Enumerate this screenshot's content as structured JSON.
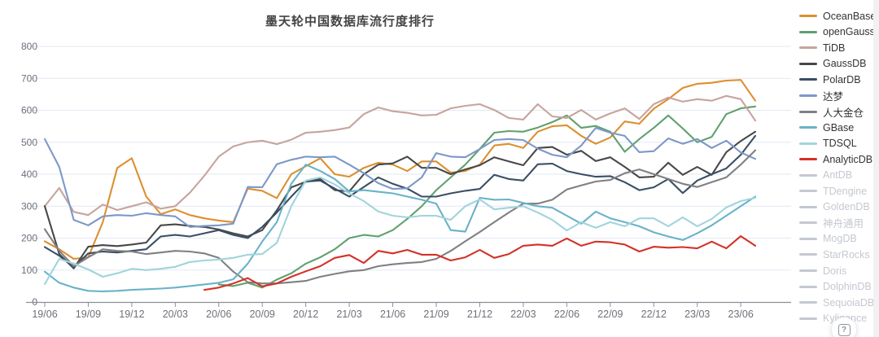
{
  "title": "墨天轮中国数据库流行度排行",
  "help": {
    "icon_glyph": "?"
  },
  "legend": {
    "items": [
      {
        "label": "OceanBase",
        "color": "#dd8f2e",
        "enabled": true
      },
      {
        "label": "openGauss",
        "color": "#61a06e",
        "enabled": true
      },
      {
        "label": "TiDB",
        "color": "#c7a49e",
        "enabled": true
      },
      {
        "label": "GaussDB",
        "color": "#48484a",
        "enabled": true
      },
      {
        "label": "PolarDB",
        "color": "#3a4e66",
        "enabled": true
      },
      {
        "label": "达梦",
        "color": "#7c98c8",
        "enabled": true
      },
      {
        "label": "人大金仓",
        "color": "#808082",
        "enabled": true
      },
      {
        "label": "GBase",
        "color": "#6ab2c8",
        "enabled": true
      },
      {
        "label": "TDSQL",
        "color": "#a0d4dc",
        "enabled": true
      },
      {
        "label": "AnalyticDB",
        "color": "#d33129",
        "enabled": true
      },
      {
        "label": "AntDB",
        "color": "#c4c8cf",
        "enabled": false
      },
      {
        "label": "TDengine",
        "color": "#c4c8cf",
        "enabled": false
      },
      {
        "label": "GoldenDB",
        "color": "#c4c8cf",
        "enabled": false
      },
      {
        "label": "神舟通用",
        "color": "#c4c8cf",
        "enabled": false
      },
      {
        "label": "MogDB",
        "color": "#c4c8cf",
        "enabled": false
      },
      {
        "label": "StarRocks",
        "color": "#c4c8cf",
        "enabled": false
      },
      {
        "label": "Doris",
        "color": "#c4c8cf",
        "enabled": false
      },
      {
        "label": "DolphinDB",
        "color": "#c4c8cf",
        "enabled": false
      },
      {
        "label": "SequoiaDB",
        "color": "#c4c8cf",
        "enabled": false
      },
      {
        "label": "Kyligence",
        "color": "#c4c8cf",
        "enabled": false
      }
    ]
  },
  "chart_data": {
    "type": "line",
    "title": "墨天轮中国数据库流行度排行",
    "xlabel": "",
    "ylabel": "",
    "ylim": [
      0,
      800
    ],
    "y_ticks": [
      0,
      100,
      200,
      300,
      400,
      500,
      600,
      700,
      800
    ],
    "grid": true,
    "legend_position": "right",
    "x": [
      "19/06",
      "19/07",
      "19/08",
      "19/09",
      "19/10",
      "19/11",
      "19/12",
      "20/01",
      "20/02",
      "20/03",
      "20/04",
      "20/05",
      "20/06",
      "20/07",
      "20/08",
      "20/09",
      "20/10",
      "20/11",
      "20/12",
      "21/01",
      "21/02",
      "21/03",
      "21/04",
      "21/05",
      "21/06",
      "21/07",
      "21/08",
      "21/09",
      "21/10",
      "21/11",
      "21/12",
      "22/01",
      "22/02",
      "22/03",
      "22/04",
      "22/05",
      "22/06",
      "22/07",
      "22/08",
      "22/09",
      "22/10",
      "22/11",
      "22/12",
      "23/01",
      "23/02",
      "23/03",
      "23/04",
      "23/05",
      "23/06",
      "23/07"
    ],
    "x_tick_labels": [
      "19/06",
      "19/09",
      "19/12",
      "20/03",
      "20/06",
      "20/09",
      "20/12",
      "21/03",
      "21/06",
      "21/09",
      "21/12",
      "22/03",
      "22/06",
      "22/09",
      "22/12",
      "23/03",
      "23/06"
    ],
    "x_tick_every": 3,
    "series": [
      {
        "name": "OceanBase",
        "color": "#dd8f2e",
        "enabled": true,
        "values": [
          190,
          165,
          135,
          140,
          250,
          420,
          450,
          330,
          275,
          290,
          272,
          262,
          255,
          250,
          355,
          348,
          325,
          400,
          425,
          450,
          400,
          392,
          420,
          436,
          430,
          410,
          440,
          440,
          405,
          410,
          430,
          490,
          495,
          482,
          533,
          550,
          553,
          520,
          495,
          515,
          565,
          558,
          605,
          635,
          670,
          683,
          686,
          693,
          695,
          630
        ]
      },
      {
        "name": "openGauss",
        "color": "#61a06e",
        "enabled": true,
        "values": [
          null,
          null,
          null,
          null,
          null,
          null,
          null,
          null,
          null,
          null,
          null,
          null,
          55,
          50,
          60,
          45,
          70,
          90,
          120,
          140,
          165,
          200,
          210,
          205,
          225,
          260,
          300,
          350,
          390,
          430,
          479,
          530,
          535,
          533,
          546,
          563,
          584,
          545,
          551,
          533,
          470,
          510,
          545,
          584,
          543,
          500,
          517,
          588,
          606,
          612
        ]
      },
      {
        "name": "TiDB",
        "color": "#c7a49e",
        "enabled": true,
        "values": [
          300,
          357,
          282,
          272,
          305,
          288,
          300,
          312,
          292,
          300,
          342,
          395,
          455,
          487,
          500,
          505,
          494,
          508,
          530,
          533,
          538,
          546,
          588,
          609,
          597,
          592,
          584,
          586,
          606,
          614,
          619,
          601,
          576,
          571,
          619,
          581,
          576,
          601,
          571,
          590,
          606,
          573,
          619,
          640,
          627,
          635,
          630,
          645,
          635,
          568
        ]
      },
      {
        "name": "GaussDB",
        "color": "#48484a",
        "enabled": true,
        "values": [
          300,
          150,
          105,
          173,
          178,
          175,
          180,
          186,
          240,
          243,
          238,
          235,
          227,
          215,
          205,
          225,
          287,
          359,
          376,
          385,
          350,
          346,
          400,
          430,
          434,
          455,
          420,
          420,
          400,
          415,
          428,
          453,
          440,
          428,
          482,
          485,
          461,
          473,
          441,
          453,
          423,
          390,
          392,
          436,
          398,
          423,
          398,
          469,
          504,
          533
        ]
      },
      {
        "name": "PolarDB",
        "color": "#3a4e66",
        "enabled": true,
        "values": [
          172,
          145,
          108,
          152,
          158,
          155,
          160,
          165,
          205,
          210,
          205,
          215,
          225,
          210,
          200,
          235,
          280,
          330,
          377,
          380,
          355,
          330,
          360,
          390,
          370,
          355,
          330,
          330,
          340,
          348,
          354,
          398,
          385,
          380,
          431,
          433,
          410,
          400,
          392,
          394,
          375,
          350,
          359,
          385,
          341,
          380,
          400,
          418,
          461,
          520
        ]
      },
      {
        "name": "达梦",
        "color": "#7c98c8",
        "enabled": true,
        "values": [
          510,
          423,
          257,
          240,
          268,
          272,
          270,
          278,
          272,
          268,
          235,
          238,
          240,
          245,
          360,
          359,
          431,
          445,
          455,
          453,
          455,
          430,
          403,
          372,
          354,
          356,
          390,
          466,
          455,
          453,
          479,
          507,
          510,
          507,
          480,
          461,
          453,
          490,
          545,
          530,
          520,
          469,
          472,
          512,
          495,
          510,
          482,
          505,
          468,
          448
        ]
      },
      {
        "name": "人大金仓",
        "color": "#808082",
        "enabled": true,
        "values": [
          228,
          160,
          112,
          140,
          165,
          160,
          158,
          150,
          155,
          160,
          158,
          152,
          138,
          95,
          62,
          58,
          58,
          62,
          66,
          79,
          88,
          96,
          100,
          112,
          118,
          122,
          125,
          135,
          160,
          190,
          219,
          250,
          280,
          308,
          308,
          320,
          352,
          365,
          377,
          382,
          403,
          415,
          400,
          385,
          370,
          360,
          375,
          390,
          430,
          475
        ]
      },
      {
        "name": "GBase",
        "color": "#6ab2c8",
        "enabled": true,
        "values": [
          95,
          60,
          45,
          35,
          33,
          35,
          38,
          40,
          42,
          45,
          50,
          55,
          60,
          71,
          120,
          189,
          250,
          370,
          430,
          410,
          385,
          346,
          350,
          345,
          340,
          330,
          320,
          308,
          225,
          220,
          326,
          320,
          321,
          310,
          300,
          295,
          270,
          245,
          283,
          262,
          250,
          237,
          218,
          205,
          194,
          215,
          240,
          270,
          300,
          330
        ]
      },
      {
        "name": "TDSQL",
        "color": "#a0d4dc",
        "enabled": true,
        "values": [
          56,
          135,
          120,
          102,
          79,
          90,
          104,
          100,
          104,
          110,
          125,
          130,
          133,
          138,
          148,
          150,
          185,
          300,
          380,
          390,
          368,
          340,
          316,
          283,
          270,
          265,
          270,
          270,
          257,
          300,
          321,
          290,
          295,
          300,
          280,
          257,
          224,
          250,
          232,
          250,
          237,
          262,
          262,
          237,
          265,
          237,
          260,
          296,
          316,
          326
        ]
      },
      {
        "name": "AnalyticDB",
        "color": "#d33129",
        "enabled": true,
        "values": [
          null,
          null,
          null,
          null,
          null,
          null,
          null,
          null,
          null,
          null,
          null,
          38,
          45,
          58,
          75,
          49,
          58,
          79,
          96,
          112,
          138,
          147,
          122,
          160,
          152,
          163,
          148,
          148,
          130,
          140,
          163,
          138,
          150,
          176,
          180,
          176,
          199,
          176,
          189,
          187,
          180,
          158,
          173,
          170,
          172,
          168,
          189,
          168,
          206,
          176
        ]
      }
    ]
  }
}
